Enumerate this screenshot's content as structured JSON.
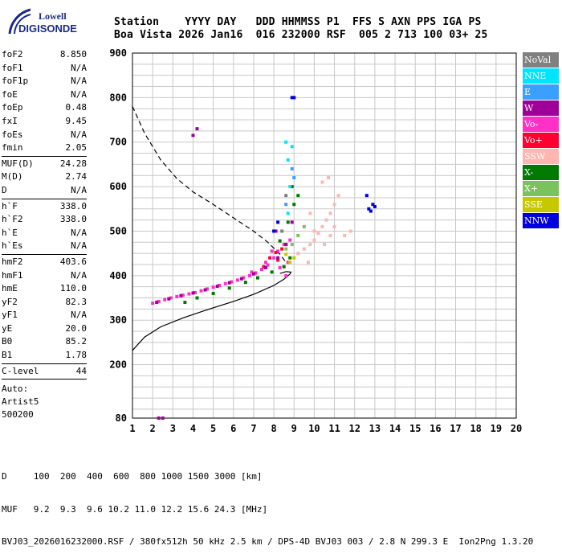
{
  "logo": {
    "line1": "Lowell",
    "line2": "DIGISONDE"
  },
  "header": {
    "line1": "Station    YYYY DAY   DDD HHMMSS P1  FFS S AXN PPS IGA PS",
    "line2": "Boa Vista 2026 Jan16  016 232000 RSF  005 2 713 100 03+ 25"
  },
  "params": {
    "groupA": [
      {
        "label": "foF2",
        "value": "8.850"
      },
      {
        "label": "foF1",
        "value": "N/A"
      },
      {
        "label": "foF1p",
        "value": "N/A"
      },
      {
        "label": "foE",
        "value": "N/A"
      },
      {
        "label": "foEp",
        "value": "0.48"
      },
      {
        "label": "fxI",
        "value": "9.45"
      },
      {
        "label": "foEs",
        "value": "N/A"
      },
      {
        "label": "fmin",
        "value": "2.05"
      }
    ],
    "groupB": [
      {
        "label": "MUF(D)",
        "value": "24.28"
      },
      {
        "label": "M(D)",
        "value": "2.74"
      },
      {
        "label": "D",
        "value": "N/A"
      }
    ],
    "groupC": [
      {
        "label": "h`F",
        "value": "338.0"
      },
      {
        "label": "h`F2",
        "value": "338.0"
      },
      {
        "label": "h`E",
        "value": "N/A"
      },
      {
        "label": "h`Es",
        "value": "N/A"
      }
    ],
    "groupD": [
      {
        "label": "hmF2",
        "value": "403.6"
      },
      {
        "label": "hmF1",
        "value": "N/A"
      },
      {
        "label": "hmE",
        "value": "110.0"
      },
      {
        "label": "yF2",
        "value": "82.3"
      },
      {
        "label": "yF1",
        "value": "N/A"
      },
      {
        "label": "yE",
        "value": "20.0"
      },
      {
        "label": "B0",
        "value": "85.2"
      },
      {
        "label": "B1",
        "value": "1.78"
      }
    ],
    "groupE": [
      {
        "label": "C-level",
        "value": "44"
      }
    ],
    "auto": [
      "Auto:",
      "Artist5",
      "500200"
    ]
  },
  "legend": [
    {
      "label": "NoVal",
      "color": "#808080"
    },
    {
      "label": "NNE",
      "color": "#00e5ff"
    },
    {
      "label": "E",
      "color": "#3aa0ff"
    },
    {
      "label": "W",
      "color": "#a0009a"
    },
    {
      "label": "Vo-",
      "color": "#ff30c8"
    },
    {
      "label": "Vo+",
      "color": "#ff0030"
    },
    {
      "label": "SSW",
      "color": "#ffb6b0"
    },
    {
      "label": "X-",
      "color": "#007a00"
    },
    {
      "label": "X+",
      "color": "#7ac25c"
    },
    {
      "label": "SSE",
      "color": "#c8c800"
    },
    {
      "label": "NNW",
      "color": "#0000e0"
    }
  ],
  "footer": {
    "line1": "D     100  200  400  600  800 1000 1500 3000 [km]",
    "line2": "MUF   9.2  9.3  9.6 10.2 11.0 12.2 15.6 24.3 [MHz]",
    "line3": "BVJ03_2026016232000.RSF / 380fx512h 50 kHz 2.5 km / DPS-4D BVJ03 003 / 2.8 N 299.3 E  Ion2Png 1.3.20"
  },
  "chart_data": {
    "type": "scatter",
    "xlim": [
      1,
      20
    ],
    "ylim": [
      80,
      900
    ],
    "xticks": [
      1,
      2,
      3,
      4,
      5,
      6,
      7,
      8,
      9,
      10,
      11,
      12,
      13,
      14,
      15,
      16,
      17,
      18,
      19,
      20
    ],
    "yticks": [
      80,
      200,
      300,
      400,
      500,
      600,
      700,
      800,
      900
    ],
    "grid": true,
    "legend_position": "right",
    "series": [
      {
        "name": "Vo-",
        "color": "#ff30c8",
        "points": [
          [
            2.0,
            338
          ],
          [
            2.3,
            342
          ],
          [
            2.6,
            346
          ],
          [
            2.9,
            350
          ],
          [
            3.2,
            353
          ],
          [
            3.5,
            356
          ],
          [
            3.8,
            359
          ],
          [
            4.1,
            362
          ],
          [
            4.4,
            366
          ],
          [
            4.7,
            370
          ],
          [
            5.0,
            374
          ],
          [
            5.3,
            378
          ],
          [
            5.6,
            382
          ],
          [
            5.9,
            386
          ],
          [
            6.2,
            390
          ],
          [
            6.5,
            395
          ],
          [
            6.8,
            400
          ],
          [
            7.1,
            406
          ],
          [
            7.4,
            414
          ],
          [
            7.7,
            424
          ],
          [
            8.0,
            440
          ],
          [
            8.2,
            455
          ],
          [
            8.5,
            470
          ],
          [
            8.6,
            400
          ],
          [
            8.8,
            480
          ],
          [
            7.9,
            455
          ],
          [
            6.9,
            408
          ],
          [
            7.6,
            430
          ],
          [
            8.7,
            430
          ],
          [
            8.3,
            418
          ]
        ]
      },
      {
        "name": "Vo+",
        "color": "#ff0030",
        "points": [
          [
            7.8,
            440
          ],
          [
            8.1,
            452
          ],
          [
            8.4,
            460
          ],
          [
            8.6,
            470
          ],
          [
            8.2,
            435
          ],
          [
            7.5,
            420
          ]
        ]
      },
      {
        "name": "W",
        "color": "#a0009a",
        "points": [
          [
            2.2,
            340
          ],
          [
            2.8,
            348
          ],
          [
            3.4,
            355
          ],
          [
            4.0,
            361
          ],
          [
            4.6,
            368
          ],
          [
            5.2,
            376
          ],
          [
            5.8,
            384
          ],
          [
            6.4,
            393
          ],
          [
            7.0,
            404
          ],
          [
            7.6,
            418
          ],
          [
            8.2,
            440
          ],
          [
            8.6,
            470
          ],
          [
            8.9,
            520
          ],
          [
            8.1,
            500
          ],
          [
            4.0,
            715
          ],
          [
            4.2,
            730
          ],
          [
            2.3,
            80
          ],
          [
            2.5,
            80
          ]
        ]
      },
      {
        "name": "X-",
        "color": "#007a00",
        "points": [
          [
            3.6,
            340
          ],
          [
            4.2,
            350
          ],
          [
            5.0,
            360
          ],
          [
            5.8,
            372
          ],
          [
            6.6,
            385
          ],
          [
            7.2,
            395
          ],
          [
            7.9,
            408
          ],
          [
            8.5,
            420
          ],
          [
            8.8,
            440
          ],
          [
            8.3,
            478
          ],
          [
            8.7,
            520
          ],
          [
            9.0,
            560
          ],
          [
            9.2,
            580
          ],
          [
            8.9,
            600
          ]
        ]
      },
      {
        "name": "X+",
        "color": "#7ac25c",
        "points": [
          [
            8.6,
            460
          ],
          [
            8.9,
            470
          ],
          [
            9.2,
            490
          ],
          [
            9.5,
            510
          ]
        ]
      },
      {
        "name": "SSE",
        "color": "#c8c800",
        "points": [
          [
            8.8,
            430
          ],
          [
            9.0,
            440
          ],
          [
            8.6,
            448
          ]
        ]
      },
      {
        "name": "SSW",
        "color": "#ffb6b0",
        "points": [
          [
            9.2,
            450
          ],
          [
            9.5,
            460
          ],
          [
            9.8,
            470
          ],
          [
            10.0,
            480
          ],
          [
            10.2,
            495
          ],
          [
            10.4,
            510
          ],
          [
            10.6,
            525
          ],
          [
            10.8,
            540
          ],
          [
            11.0,
            560
          ],
          [
            11.2,
            580
          ],
          [
            10.5,
            470
          ],
          [
            10.8,
            490
          ],
          [
            11.5,
            490
          ],
          [
            11.8,
            500
          ],
          [
            9.7,
            430
          ],
          [
            10.0,
            500
          ],
          [
            10.4,
            610
          ],
          [
            10.7,
            620
          ],
          [
            11.0,
            510
          ],
          [
            9.8,
            540
          ]
        ]
      },
      {
        "name": "NNE",
        "color": "#00e5ff",
        "points": [
          [
            8.7,
            540
          ],
          [
            8.8,
            600
          ],
          [
            8.7,
            660
          ],
          [
            8.6,
            700
          ],
          [
            8.9,
            690
          ]
        ]
      },
      {
        "name": "E",
        "color": "#3aa0ff",
        "points": [
          [
            8.6,
            560
          ],
          [
            9.0,
            620
          ],
          [
            8.9,
            640
          ]
        ]
      },
      {
        "name": "NNW",
        "color": "#0000e0",
        "points": [
          [
            8.0,
            500
          ],
          [
            8.2,
            520
          ],
          [
            8.9,
            800
          ],
          [
            9.0,
            800
          ],
          [
            12.7,
            550
          ],
          [
            12.9,
            560
          ],
          [
            13.0,
            555
          ],
          [
            12.8,
            545
          ],
          [
            12.6,
            580
          ]
        ]
      },
      {
        "name": "NoVal",
        "color": "#808080",
        "points": [
          [
            8.4,
            500
          ],
          [
            8.6,
            580
          ]
        ]
      }
    ],
    "curves": {
      "profile": [
        [
          1.0,
          232
        ],
        [
          1.6,
          262
        ],
        [
          2.4,
          285
        ],
        [
          3.5,
          305
        ],
        [
          4.8,
          325
        ],
        [
          6.0,
          342
        ],
        [
          7.0,
          358
        ],
        [
          8.0,
          378
        ],
        [
          8.5,
          392
        ],
        [
          8.8,
          403.6
        ],
        [
          8.85,
          408
        ],
        [
          8.6,
          409
        ],
        [
          8.3,
          405
        ]
      ],
      "dashed": [
        [
          1.0,
          780
        ],
        [
          1.6,
          720
        ],
        [
          2.4,
          660
        ],
        [
          3.2,
          618
        ],
        [
          4.0,
          588
        ],
        [
          5.0,
          560
        ],
        [
          6.0,
          530
        ],
        [
          7.0,
          500
        ],
        [
          7.7,
          475
        ],
        [
          8.3,
          448
        ],
        [
          8.6,
          430
        ]
      ]
    }
  }
}
